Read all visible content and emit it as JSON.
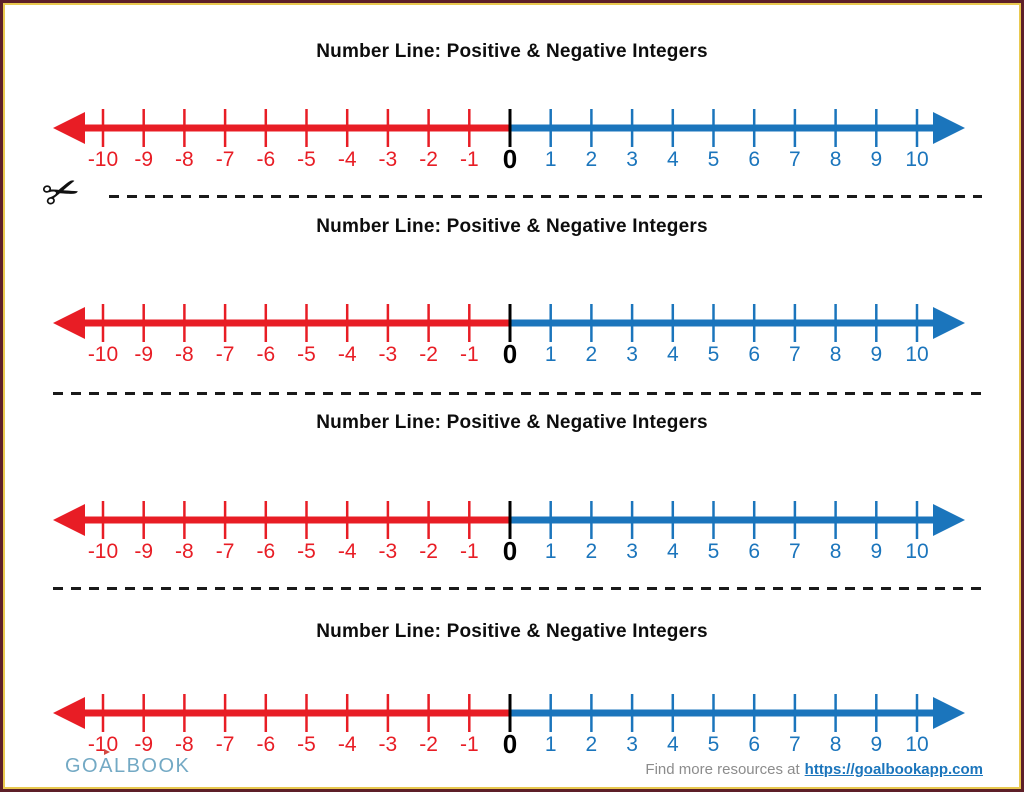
{
  "worksheet": {
    "title": "Number Line: Positive & Negative Integers",
    "strip_count": 4,
    "number_line": {
      "min": -10,
      "max": 10,
      "step": 1,
      "ticks": [
        -10,
        -9,
        -8,
        -7,
        -6,
        -5,
        -4,
        -3,
        -2,
        -1,
        0,
        1,
        2,
        3,
        4,
        5,
        6,
        7,
        8,
        9,
        10
      ],
      "negative_color": "#e81d25",
      "positive_color": "#1b75bc",
      "zero_color": "#000000"
    }
  },
  "icons": {
    "scissors": "✂"
  },
  "colors": {
    "page_border_outer": "#5d1f28",
    "page_border_inner": "#e9c94f",
    "cut_line": "#1a1a1a",
    "title_text": "#0d0d0d",
    "footer_text": "#8c8c8c",
    "link": "#1b75bc",
    "logo": "#73a9c4",
    "logo_flag": "#d24a42"
  },
  "footer": {
    "logo": {
      "go": "GO",
      "a": "A",
      "rest": "LBOOK"
    },
    "resources_text": "Find more resources at",
    "resources_link": "https://goalbookapp.com"
  }
}
